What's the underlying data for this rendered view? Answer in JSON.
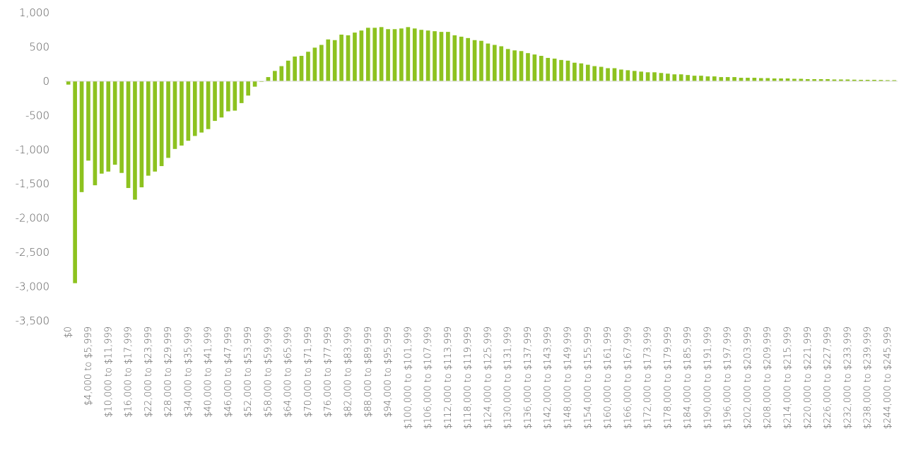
{
  "chart_data": {
    "type": "bar",
    "categories": [
      "$0",
      null,
      null,
      "$4,000 to $5,999",
      null,
      null,
      "$10,000 to $11,999",
      null,
      null,
      "$16,000 to $17,999",
      null,
      null,
      "$22,000 to $23,999",
      null,
      null,
      "$28,000 to $29,999",
      null,
      null,
      "$34,000 to $35,999",
      null,
      null,
      "$40,000 to $41,999",
      null,
      null,
      "$46,000 to $47,999",
      null,
      null,
      "$52,000 to $53,999",
      null,
      null,
      "$58,000 to $59,999",
      null,
      null,
      "$64,000 to $65,999",
      null,
      null,
      "$70,000 to $71,999",
      null,
      null,
      "$76,000 to $77,999",
      null,
      null,
      "$82,000 to $83,999",
      null,
      null,
      "$88,000 to $89,999",
      null,
      null,
      "$94,000 to $95,999",
      null,
      null,
      "$100,000 to $101,999",
      null,
      null,
      "$106,000 to $107,999",
      null,
      null,
      "$112,000 to $113,999",
      null,
      null,
      "$118,000 to $119,999",
      null,
      null,
      "$124,000 to $125,999",
      null,
      null,
      "$130,000 to $131,999",
      null,
      null,
      "$136,000 to $137,999",
      null,
      null,
      "$142,000 to $143,999",
      null,
      null,
      "$148,000 to $149,999",
      null,
      null,
      "$154,000 to $155,999",
      null,
      null,
      "$160,000 to $161,999",
      null,
      null,
      "$166,000 to $167,999",
      null,
      null,
      "$172,000 to $173,999",
      null,
      null,
      "$178,000 to $179,999",
      null,
      null,
      "$184,000 to $185,999",
      null,
      null,
      "$190,000 to $191,999",
      null,
      null,
      "$196,000 to $197,999",
      null,
      null,
      "$202,000 to $203,999",
      null,
      null,
      "$208,000 to $209,999",
      null,
      null,
      "$214,000 to $215,999",
      null,
      null,
      "$220,000 to $221,999",
      null,
      null,
      "$226,000 to $227,999",
      null,
      null,
      "$232,000 to $233,999",
      null,
      null,
      "$238,000 to $239,999",
      null,
      null,
      "$244,000 to $245,999",
      null
    ],
    "values": [
      -50,
      -2950,
      -1620,
      -1160,
      -1520,
      -1350,
      -1320,
      -1220,
      -1340,
      -1560,
      -1730,
      -1550,
      -1380,
      -1320,
      -1240,
      -1120,
      -990,
      -940,
      -870,
      -800,
      -750,
      -700,
      -580,
      -530,
      -440,
      -430,
      -320,
      -210,
      -80,
      -10,
      60,
      150,
      220,
      300,
      360,
      370,
      430,
      490,
      530,
      610,
      600,
      680,
      670,
      710,
      740,
      780,
      780,
      790,
      760,
      760,
      770,
      790,
      770,
      750,
      740,
      730,
      720,
      720,
      670,
      650,
      630,
      600,
      590,
      550,
      530,
      510,
      470,
      450,
      440,
      410,
      390,
      370,
      340,
      330,
      310,
      300,
      270,
      260,
      240,
      220,
      210,
      190,
      190,
      170,
      160,
      150,
      140,
      130,
      130,
      120,
      110,
      100,
      100,
      90,
      80,
      80,
      70,
      70,
      60,
      60,
      60,
      50,
      50,
      50,
      45,
      45,
      40,
      40,
      40,
      35,
      35,
      30,
      30,
      30,
      30,
      25,
      25,
      25,
      22,
      20,
      20,
      20,
      18,
      15,
      15
    ],
    "color": "#8dc21f",
    "ylim": [
      -3500,
      1000
    ],
    "yticks": [
      {
        "value": -3500,
        "label": "-3,500"
      },
      {
        "value": -3000,
        "label": "-3,000"
      },
      {
        "value": -2500,
        "label": "-2,500"
      },
      {
        "value": -2000,
        "label": "-2,000"
      },
      {
        "value": -1500,
        "label": "-1,500"
      },
      {
        "value": -1000,
        "label": "-1,000"
      },
      -500,
      0,
      500,
      {
        "value": 1000,
        "label": "1,000"
      }
    ],
    "grid": false
  }
}
